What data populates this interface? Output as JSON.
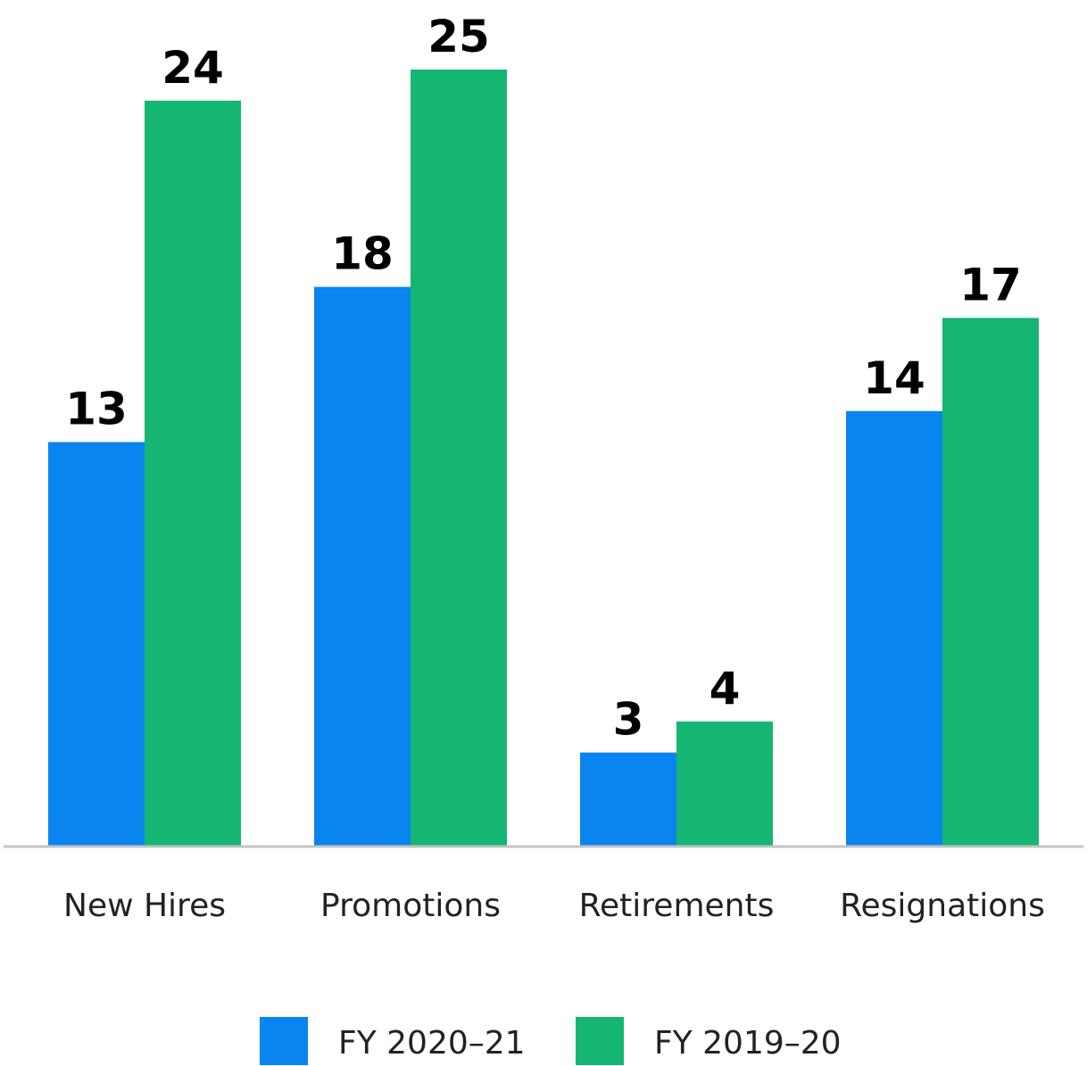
{
  "chart_data": {
    "type": "bar",
    "categories": [
      "New Hires",
      "Promotions",
      "Retirements",
      "Resignations"
    ],
    "series": [
      {
        "name": "FY 2020–21",
        "values": [
          13,
          18,
          3,
          14
        ],
        "color": "#0a84ee"
      },
      {
        "name": "FY 2019–20",
        "values": [
          24,
          25,
          4,
          17
        ],
        "color": "#15b573"
      }
    ],
    "ylim": [
      0,
      25
    ],
    "grid": false,
    "legend_position": "bottom-center",
    "axis_color": "#c4c4c4"
  }
}
